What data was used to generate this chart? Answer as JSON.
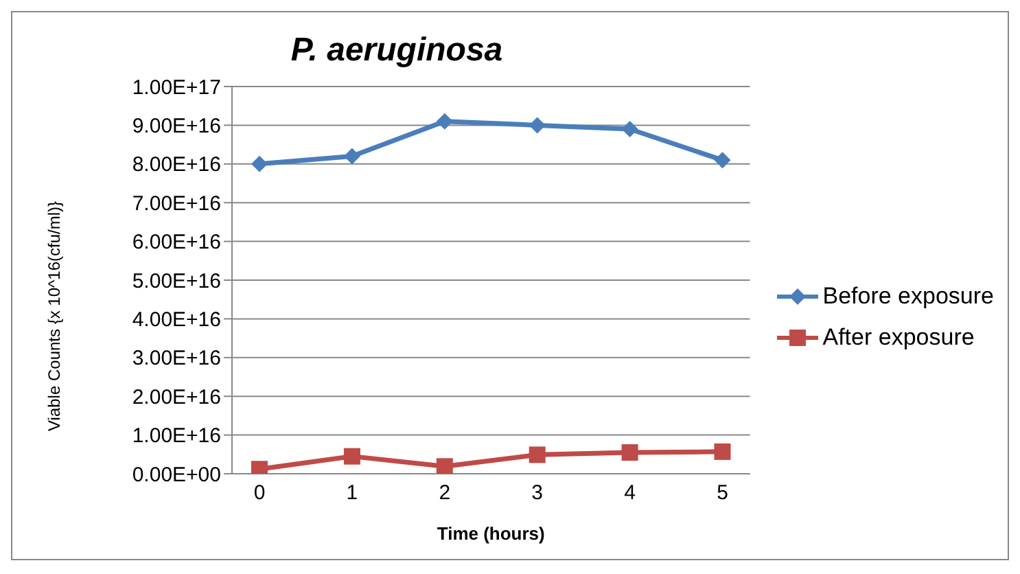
{
  "chart_data": {
    "type": "line",
    "title": "P. aeruginosa",
    "xlabel": "Time (hours)",
    "ylabel": "Viable Counts {x 10^16(cfu/ml)}",
    "categories": [
      "0",
      "1",
      "2",
      "3",
      "4",
      "5"
    ],
    "series": [
      {
        "name": "Before exposure",
        "color": "#4a7ebb",
        "marker": "diamond",
        "values": [
          8e+16,
          8.2e+16,
          9.1e+16,
          9e+16,
          8.9e+16,
          8.1e+16
        ]
      },
      {
        "name": "After exposure",
        "color": "#be4b48",
        "marker": "square",
        "values": [
          1200000000000000.0,
          4500000000000000.0,
          1900000000000000.0,
          4900000000000000.0,
          5500000000000000.0,
          5700000000000000.0
        ]
      }
    ],
    "ylim": [
      0,
      1e+17
    ],
    "yticks": [
      {
        "value": 0,
        "label": "0.00E+00"
      },
      {
        "value": 1e+16,
        "label": "1.00E+16"
      },
      {
        "value": 2e+16,
        "label": "2.00E+16"
      },
      {
        "value": 3e+16,
        "label": "3.00E+16"
      },
      {
        "value": 4e+16,
        "label": "4.00E+16"
      },
      {
        "value": 5e+16,
        "label": "5.00E+16"
      },
      {
        "value": 6e+16,
        "label": "6.00E+16"
      },
      {
        "value": 7e+16,
        "label": "7.00E+16"
      },
      {
        "value": 8e+16,
        "label": "8.00E+16"
      },
      {
        "value": 9e+16,
        "label": "9.00E+16"
      },
      {
        "value": 1e+17,
        "label": "1.00E+17"
      }
    ],
    "grid": "y",
    "legend": "right",
    "line_style": "solid"
  }
}
